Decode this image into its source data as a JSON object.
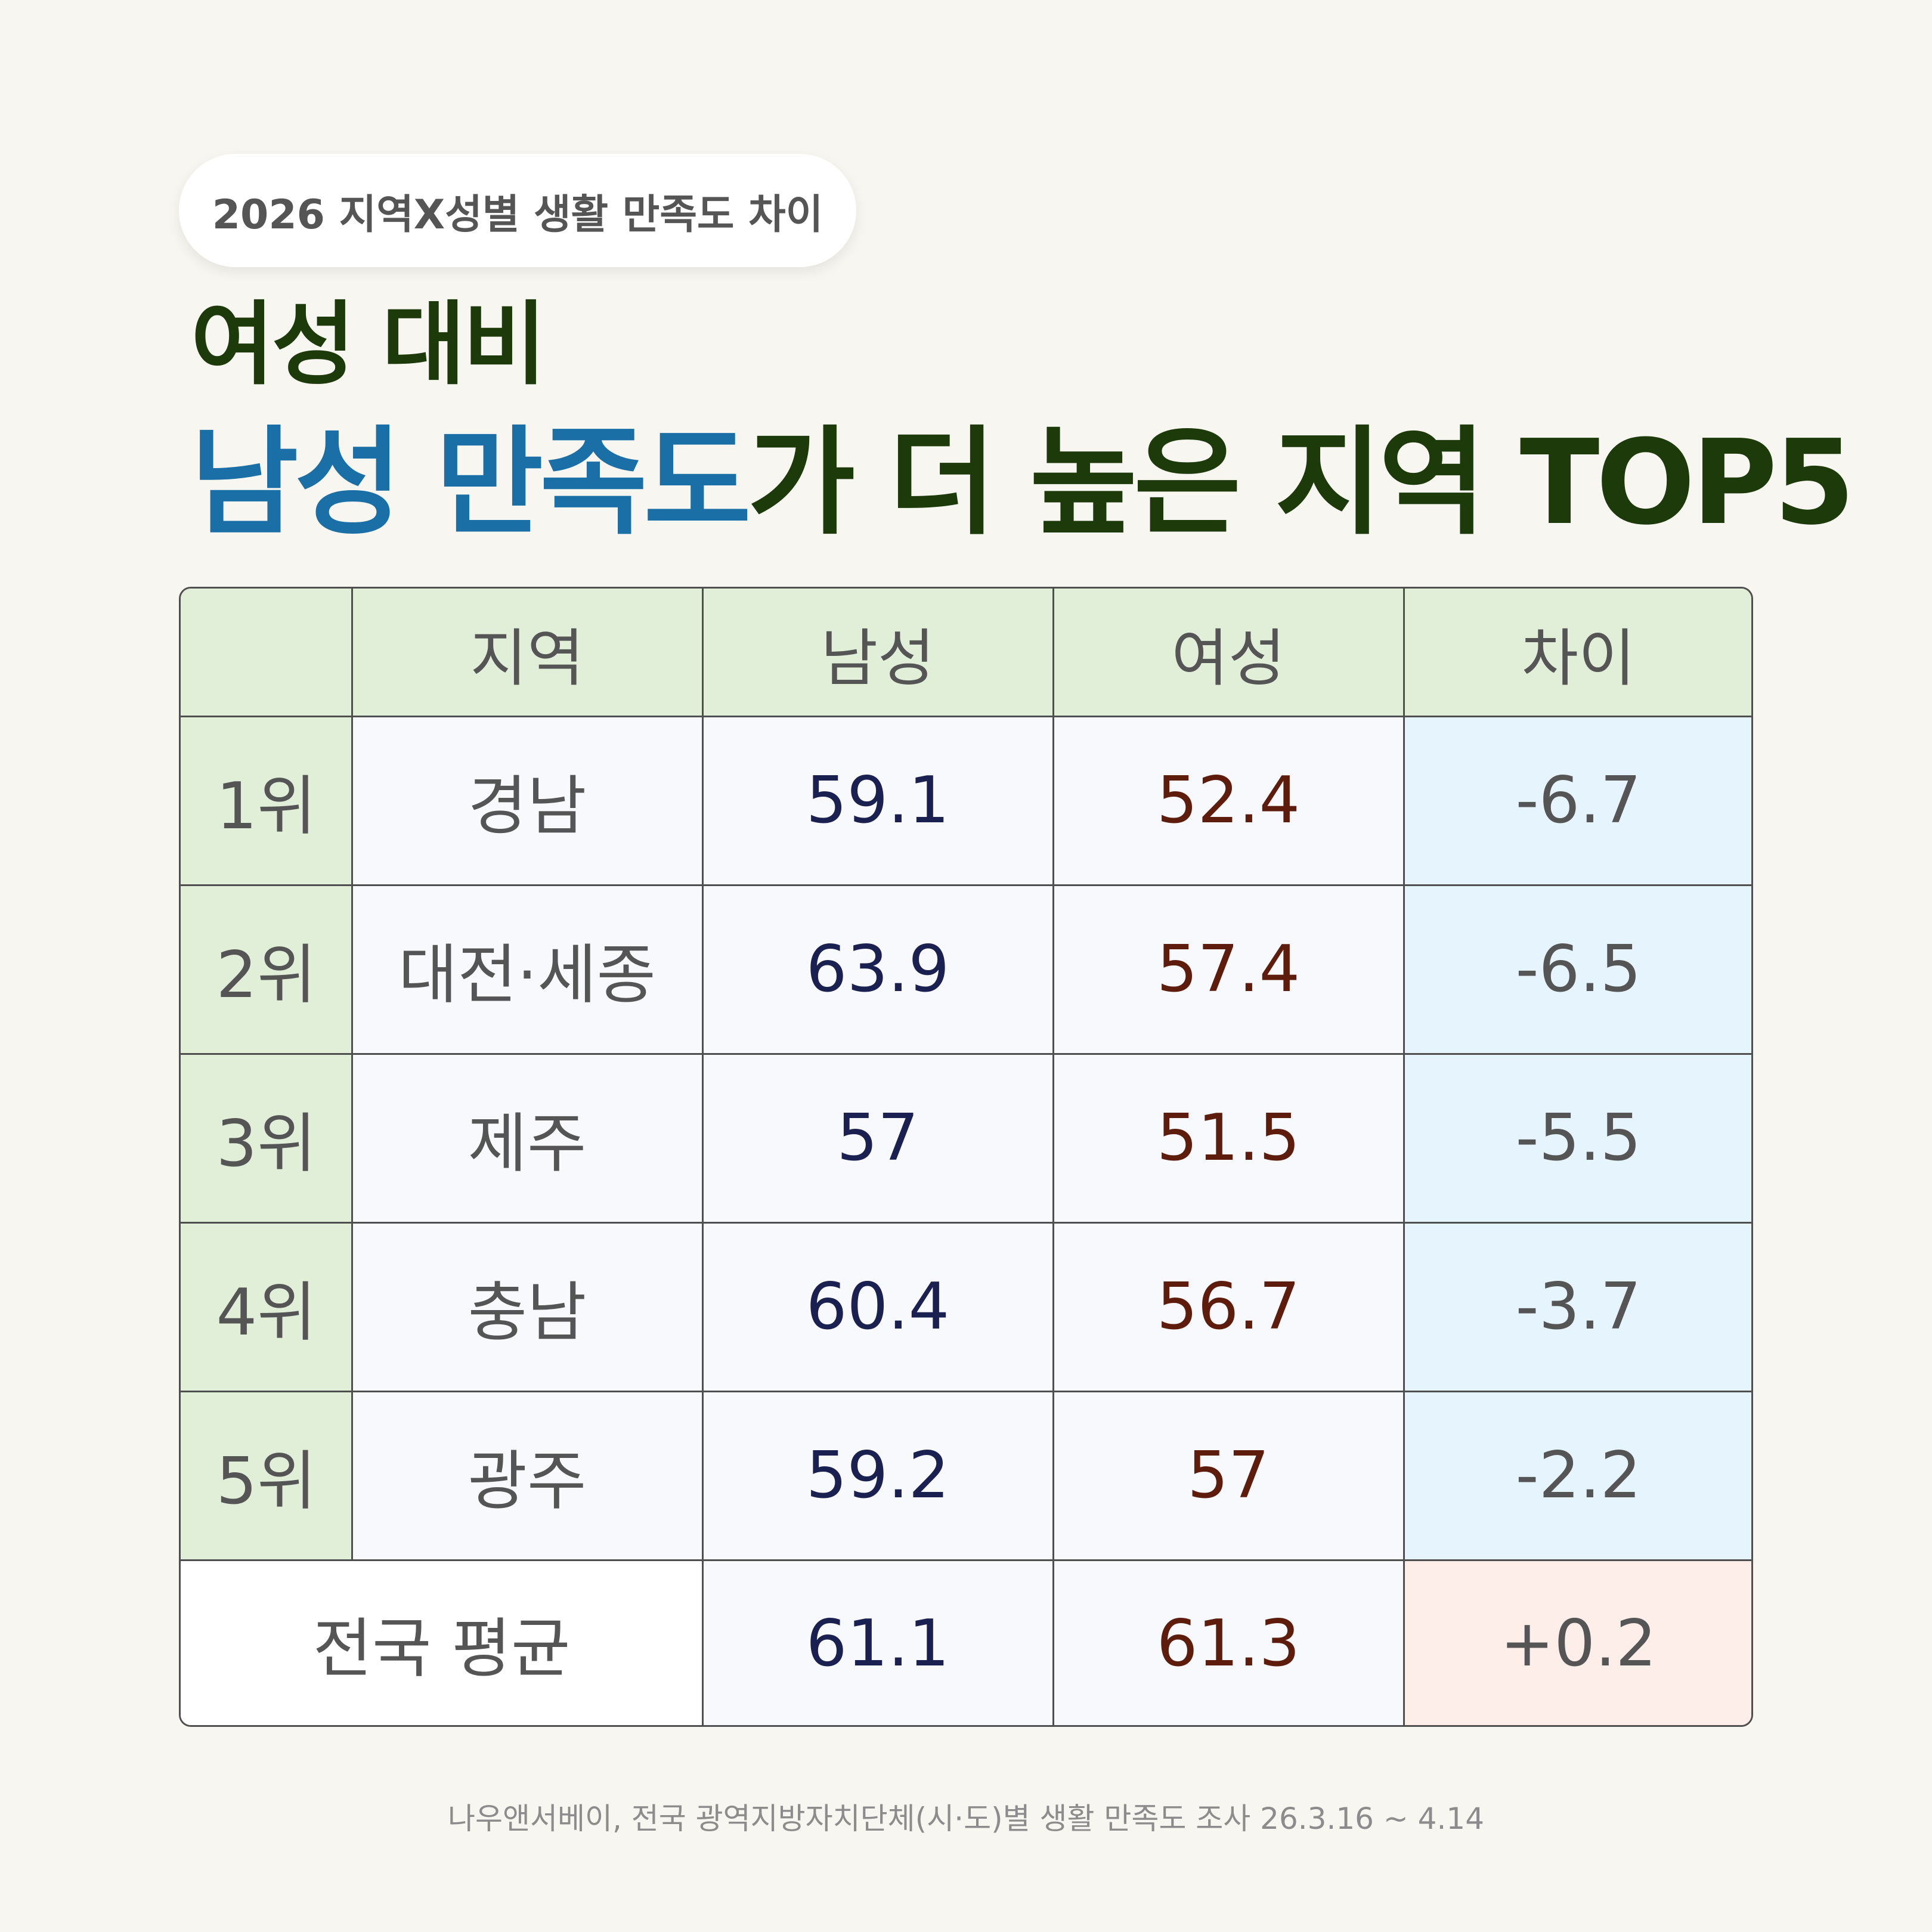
{
  "badge": "2026 지역X성별 생활 만족도 차이",
  "title_line1": "여성 대비",
  "title_line2_highlight": "남성 만족도",
  "title_line2_rest": "가 더 높은 지역 TOP5",
  "colors": {
    "background": "#f8f6f0",
    "title_dark_green": "#1c3a0a",
    "title_blue": "#1a6fa6",
    "header_green": "#e2efd8",
    "male_text": "#1a2150",
    "female_text": "#5e1d0c",
    "diff_blue_bg": "#e6f4fd",
    "diff_pink_bg": "#fdeeea"
  },
  "chart_data": {
    "type": "table",
    "columns": [
      "",
      "지역",
      "남성",
      "여성",
      "차이"
    ],
    "rows": [
      {
        "rank": "1위",
        "region": "경남",
        "male": "59.1",
        "female": "52.4",
        "diff": "-6.7"
      },
      {
        "rank": "2위",
        "region": "대전·세종",
        "male": "63.9",
        "female": "57.4",
        "diff": "-6.5"
      },
      {
        "rank": "3위",
        "region": "제주",
        "male": "57",
        "female": "51.5",
        "diff": "-5.5"
      },
      {
        "rank": "4위",
        "region": "충남",
        "male": "60.4",
        "female": "56.7",
        "diff": "-3.7"
      },
      {
        "rank": "5위",
        "region": "광주",
        "male": "59.2",
        "female": "57",
        "diff": "-2.2"
      }
    ],
    "average": {
      "label": "전국 평균",
      "male": "61.1",
      "female": "61.3",
      "diff": "+0.2"
    }
  },
  "source": "나우앤서베이, 전국 광역지방자치단체(시·도)별 생활 만족도 조사 26.3.16 ~ 4.14"
}
